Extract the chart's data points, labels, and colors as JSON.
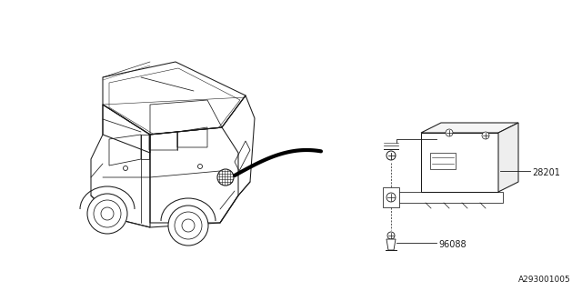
{
  "bg_color": "#ffffff",
  "line_color": "#1a1a1a",
  "fig_width": 6.4,
  "fig_height": 3.2,
  "dpi": 100,
  "footnote": "A293001005",
  "font_size_labels": 7.0,
  "font_size_footnote": 6.5,
  "car_ox": 0.175,
  "car_oy": 0.48,
  "car_scale": 1.0,
  "unit_ox": 0.645,
  "unit_oy": 0.5,
  "unit_scale": 1.0
}
